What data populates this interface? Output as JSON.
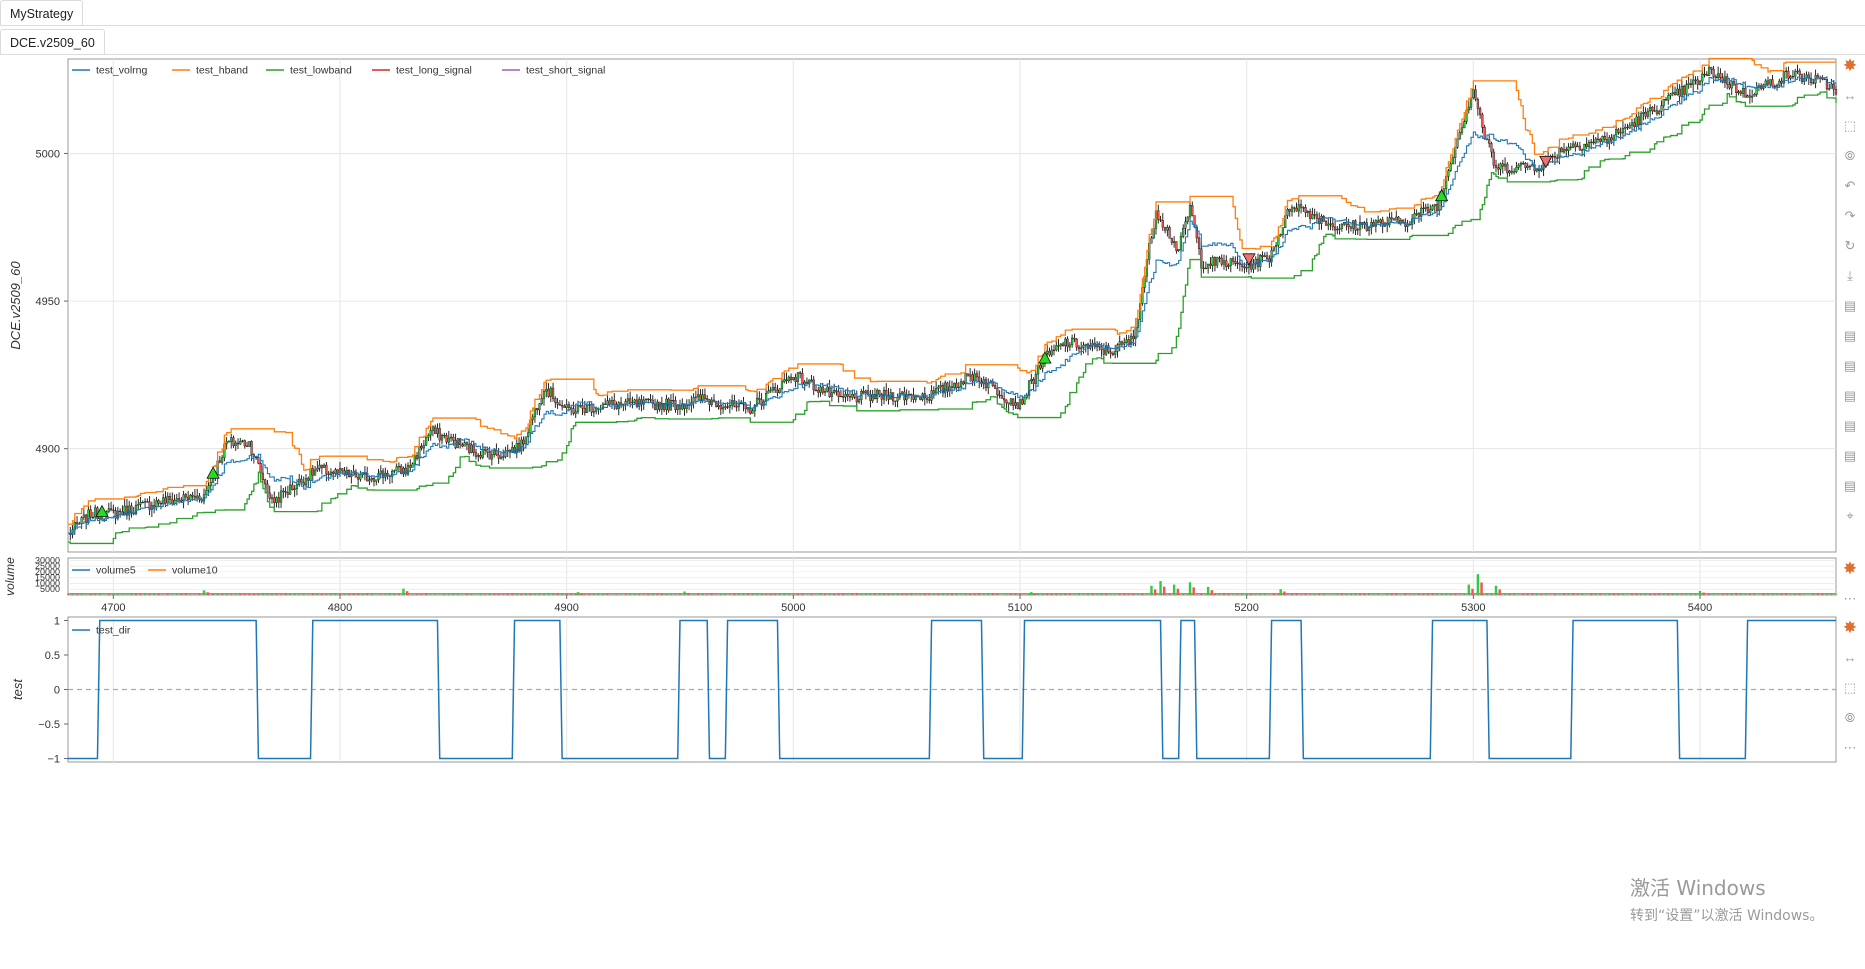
{
  "tabs": {
    "strategy": "MyStrategy",
    "symbol": "DCE.v2509_60"
  },
  "colors": {
    "blue": "#1f77b4",
    "orange": "#ff7f0e",
    "green": "#2ca02c",
    "red": "#d62728",
    "purple": "#9467bd",
    "up_bar": "#2ecc40",
    "down_bar": "#ef5350",
    "grid": "#e6e6e6"
  },
  "toolbar_icons": [
    "bokeh-logo-icon",
    "pan-icon",
    "box-zoom-icon",
    "wheel-zoom-icon",
    "undo-icon",
    "redo-icon",
    "reset-icon",
    "save-icon",
    "hover-icon",
    "hover-icon",
    "hover-icon",
    "hover-icon",
    "hover-icon",
    "hover-icon",
    "hover-icon",
    "crosshair-icon"
  ],
  "watermark": {
    "line1": "激活 Windows",
    "line2": "转到“设置”以激活 Windows。"
  },
  "chart_data": [
    {
      "type": "line",
      "ylabel": "DCE.v2509_60",
      "ylim": [
        4865,
        5032
      ],
      "yticks": [
        "5000",
        "4950",
        "4900"
      ],
      "ytick_values": [
        5000,
        4950,
        4900
      ],
      "xlim": [
        4680,
        5460
      ],
      "legend": [
        "test_volrng",
        "test_hband",
        "test_lowband",
        "test_long_signal",
        "test_short_signal"
      ],
      "legend_position": "top-left",
      "grid": true,
      "anchors": {
        "x": [
          4680,
          4690,
          4700,
          4720,
          4740,
          4750,
          4760,
          4770,
          4790,
          4810,
          4830,
          4840,
          4860,
          4870,
          4880,
          4890,
          4900,
          4920,
          4950,
          4960,
          4980,
          5000,
          5020,
          5040,
          5060,
          5080,
          5095,
          5100,
          5110,
          5120,
          5140,
          5150,
          5160,
          5170,
          5175,
          5180,
          5190,
          5200,
          5210,
          5220,
          5240,
          5270,
          5285,
          5290,
          5300,
          5305,
          5310,
          5330,
          5340,
          5360,
          5380,
          5400,
          5405,
          5420,
          5440,
          5450,
          5460
        ],
        "close": [
          4871,
          4878,
          4878,
          4882,
          4884,
          4902,
          4902,
          4882,
          4893,
          4890,
          4893,
          4906,
          4899,
          4898,
          4901,
          4921,
          4913,
          4915,
          4915,
          4917,
          4913,
          4925,
          4917,
          4918,
          4918,
          4925,
          4917,
          4915,
          4930,
          4936,
          4933,
          4937,
          4981,
          4967,
          4982,
          4963,
          4963,
          4962,
          4965,
          4983,
          4975,
          4977,
          4983,
          4998,
          5022,
          5006,
          4995,
          4996,
          5002,
          5005,
          5015,
          5025,
          5028,
          5020,
          5027,
          5025,
          5022
        ]
      },
      "markers": [
        {
          "type": "long",
          "x": 4695,
          "y": 4878
        },
        {
          "type": "long",
          "x": 4744,
          "y": 4891
        },
        {
          "type": "long",
          "x": 5111,
          "y": 4930
        },
        {
          "type": "long",
          "x": 5286,
          "y": 4985
        },
        {
          "type": "short",
          "x": 5201,
          "y": 4965
        },
        {
          "type": "short",
          "x": 5332,
          "y": 4998
        }
      ]
    },
    {
      "type": "bar",
      "ylabel": "volume",
      "yticks": [
        "30000",
        "25000",
        "20000",
        "15000",
        "10000",
        "5000"
      ],
      "ytick_values": [
        30000,
        25000,
        20000,
        15000,
        10000,
        5000
      ],
      "ylim": [
        0,
        32000
      ],
      "legend": [
        "volume5",
        "volume10"
      ],
      "xticks": [
        4700,
        4800,
        4900,
        5000,
        5100,
        5200,
        5300,
        5400
      ],
      "spikes": [
        {
          "x": 4740,
          "v": 4000
        },
        {
          "x": 4828,
          "v": 5500
        },
        {
          "x": 4905,
          "v": 2500
        },
        {
          "x": 4952,
          "v": 3000
        },
        {
          "x": 5105,
          "v": 2500
        },
        {
          "x": 5158,
          "v": 8000
        },
        {
          "x": 5162,
          "v": 12000
        },
        {
          "x": 5168,
          "v": 9000
        },
        {
          "x": 5175,
          "v": 11000
        },
        {
          "x": 5183,
          "v": 7000
        },
        {
          "x": 5215,
          "v": 5000
        },
        {
          "x": 5298,
          "v": 9000
        },
        {
          "x": 5302,
          "v": 18000
        },
        {
          "x": 5310,
          "v": 8000
        },
        {
          "x": 5400,
          "v": 3500
        }
      ]
    },
    {
      "type": "line",
      "ylabel": "test",
      "yticks": [
        "1",
        "0.5",
        "0",
        "−0.5",
        "−1"
      ],
      "ytick_values": [
        1,
        0.5,
        0,
        -0.5,
        -1
      ],
      "ylim": [
        -1.05,
        1.05
      ],
      "legend": [
        "test_dir"
      ],
      "series": [
        {
          "name": "test_dir",
          "x": [
            4680,
            4693,
            4694,
            4763,
            4764,
            4787,
            4788,
            4843,
            4844,
            4876,
            4877,
            4897,
            4898,
            4949,
            4950,
            4962,
            4963,
            4970,
            4971,
            4993,
            4994,
            5060,
            5061,
            5083,
            5084,
            5101,
            5102,
            5162,
            5163,
            5170,
            5171,
            5177,
            5178,
            5210,
            5211,
            5224,
            5225,
            5281,
            5282,
            5306,
            5307,
            5343,
            5344,
            5390,
            5391,
            5420,
            5421,
            5460
          ],
          "values": [
            -1,
            -1,
            1,
            1,
            -1,
            -1,
            1,
            1,
            -1,
            -1,
            1,
            1,
            -1,
            -1,
            1,
            1,
            -1,
            -1,
            1,
            1,
            -1,
            -1,
            1,
            1,
            -1,
            -1,
            1,
            1,
            -1,
            -1,
            1,
            1,
            -1,
            -1,
            1,
            1,
            -1,
            -1,
            1,
            1,
            -1,
            -1,
            1,
            1,
            -1,
            -1,
            1,
            1
          ]
        }
      ]
    }
  ]
}
